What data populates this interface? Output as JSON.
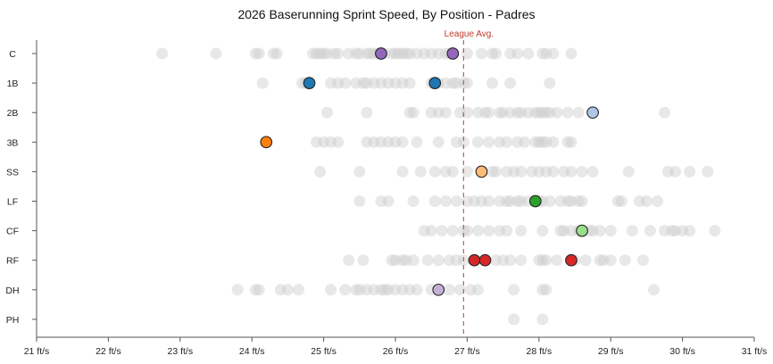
{
  "chart_data": {
    "type": "scatter",
    "title": "2026 Baserunning Sprint Speed, By Position - Padres",
    "xlim": [
      21,
      31
    ],
    "x_ticks": [
      {
        "value": 21,
        "label": "21 ft/s"
      },
      {
        "value": 22,
        "label": "22 ft/s"
      },
      {
        "value": 23,
        "label": "23 ft/s"
      },
      {
        "value": 24,
        "label": "24 ft/s"
      },
      {
        "value": 25,
        "label": "25 ft/s"
      },
      {
        "value": 26,
        "label": "26 ft/s"
      },
      {
        "value": 27,
        "label": "27 ft/s"
      },
      {
        "value": 28,
        "label": "28 ft/s"
      },
      {
        "value": 29,
        "label": "29 ft/s"
      },
      {
        "value": 30,
        "label": "30 ft/s"
      },
      {
        "value": 31,
        "label": "31 ft/s"
      }
    ],
    "categories": [
      "C",
      "1B",
      "2B",
      "3B",
      "SS",
      "LF",
      "CF",
      "RF",
      "DH",
      "PH"
    ],
    "reference_line": {
      "value": 26.95,
      "label": "League Avg.",
      "color": "#d9534f"
    },
    "grid": false,
    "league_points": {
      "color": "#cccccc",
      "by_position": {
        "C": [
          22.75,
          23.5,
          24.05,
          24.1,
          24.3,
          24.35,
          24.85,
          24.9,
          24.95,
          25.0,
          25.05,
          25.15,
          25.2,
          25.35,
          25.45,
          25.5,
          25.6,
          25.65,
          25.7,
          25.75,
          25.85,
          25.95,
          26.0,
          26.05,
          26.1,
          26.15,
          26.2,
          26.3,
          26.4,
          26.5,
          26.6,
          26.7,
          26.75,
          27.0,
          27.2,
          27.35,
          27.4,
          27.6,
          27.7,
          27.85,
          28.05,
          28.1,
          28.2,
          28.45
        ],
        "1B": [
          24.15,
          24.7,
          24.75,
          24.8,
          25.1,
          25.2,
          25.3,
          25.45,
          25.55,
          25.6,
          25.7,
          25.8,
          25.9,
          26.0,
          26.1,
          26.2,
          26.5,
          26.6,
          26.7,
          26.8,
          26.85,
          26.95,
          27.0,
          27.35,
          27.6,
          28.15
        ],
        "2B": [
          25.05,
          25.6,
          26.2,
          26.25,
          26.5,
          26.6,
          26.7,
          26.9,
          27.0,
          27.15,
          27.25,
          27.3,
          27.45,
          27.5,
          27.6,
          27.7,
          27.75,
          27.85,
          27.95,
          28.0,
          28.05,
          28.1,
          28.15,
          28.25,
          28.4,
          28.55,
          29.75
        ],
        "3B": [
          24.9,
          25.0,
          25.1,
          25.2,
          25.6,
          25.7,
          25.8,
          25.9,
          26.0,
          26.1,
          26.3,
          26.6,
          26.85,
          26.95,
          27.15,
          27.3,
          27.45,
          27.55,
          27.7,
          27.8,
          27.95,
          28.0,
          28.05,
          28.1,
          28.2,
          28.4,
          28.45
        ],
        "SS": [
          24.95,
          25.5,
          26.1,
          26.35,
          26.55,
          26.7,
          26.8,
          27.0,
          27.35,
          27.4,
          27.55,
          27.65,
          27.75,
          27.9,
          28.0,
          28.1,
          28.2,
          28.35,
          28.45,
          28.6,
          28.75,
          29.25,
          29.8,
          29.9,
          30.1,
          30.35
        ],
        "LF": [
          25.5,
          25.8,
          25.9,
          26.25,
          26.55,
          26.7,
          26.85,
          27.0,
          27.1,
          27.2,
          27.3,
          27.45,
          27.55,
          27.6,
          27.7,
          27.75,
          27.85,
          28.0,
          28.05,
          28.15,
          28.3,
          28.4,
          28.45,
          28.55,
          28.6,
          29.1,
          29.15,
          29.4,
          29.5,
          29.65
        ],
        "CF": [
          26.4,
          26.5,
          26.65,
          26.8,
          26.95,
          27.0,
          27.15,
          27.3,
          27.45,
          27.55,
          27.75,
          28.05,
          28.3,
          28.35,
          28.45,
          28.55,
          28.7,
          28.75,
          28.85,
          29.0,
          29.3,
          29.55,
          29.75,
          29.85,
          29.9,
          30.0,
          30.1,
          30.45
        ],
        "RF": [
          25.35,
          25.55,
          25.95,
          26.0,
          26.1,
          26.15,
          26.25,
          26.45,
          26.6,
          26.75,
          26.85,
          26.95,
          27.4,
          27.5,
          27.6,
          27.75,
          28.0,
          28.05,
          28.1,
          28.25,
          28.5,
          28.65,
          28.85,
          28.9,
          29.0,
          29.2,
          29.45
        ],
        "DH": [
          23.8,
          24.05,
          24.1,
          24.4,
          24.5,
          24.65,
          25.1,
          25.3,
          25.45,
          25.5,
          25.6,
          25.7,
          25.8,
          25.85,
          25.9,
          26.0,
          26.1,
          26.2,
          26.3,
          26.5,
          26.75,
          26.9,
          27.05,
          27.15,
          27.65,
          28.05,
          28.1,
          29.6
        ],
        "PH": [
          27.65,
          28.05
        ]
      }
    },
    "padres_points": [
      {
        "position": "C",
        "x": 25.8,
        "color": "#9467bd"
      },
      {
        "position": "C",
        "x": 26.8,
        "color": "#9467bd"
      },
      {
        "position": "1B",
        "x": 24.8,
        "color": "#1f77b4"
      },
      {
        "position": "1B",
        "x": 26.55,
        "color": "#1f77b4"
      },
      {
        "position": "2B",
        "x": 28.75,
        "color": "#aec7e8"
      },
      {
        "position": "3B",
        "x": 24.2,
        "color": "#ff7f0e"
      },
      {
        "position": "SS",
        "x": 27.2,
        "color": "#ffbb78"
      },
      {
        "position": "LF",
        "x": 27.95,
        "color": "#2ca02c"
      },
      {
        "position": "CF",
        "x": 28.6,
        "color": "#98df8a"
      },
      {
        "position": "RF",
        "x": 27.1,
        "color": "#d62728"
      },
      {
        "position": "RF",
        "x": 27.25,
        "color": "#d62728"
      },
      {
        "position": "RF",
        "x": 28.45,
        "color": "#d62728"
      },
      {
        "position": "DH",
        "x": 26.6,
        "color": "#c5b0d5"
      }
    ]
  }
}
